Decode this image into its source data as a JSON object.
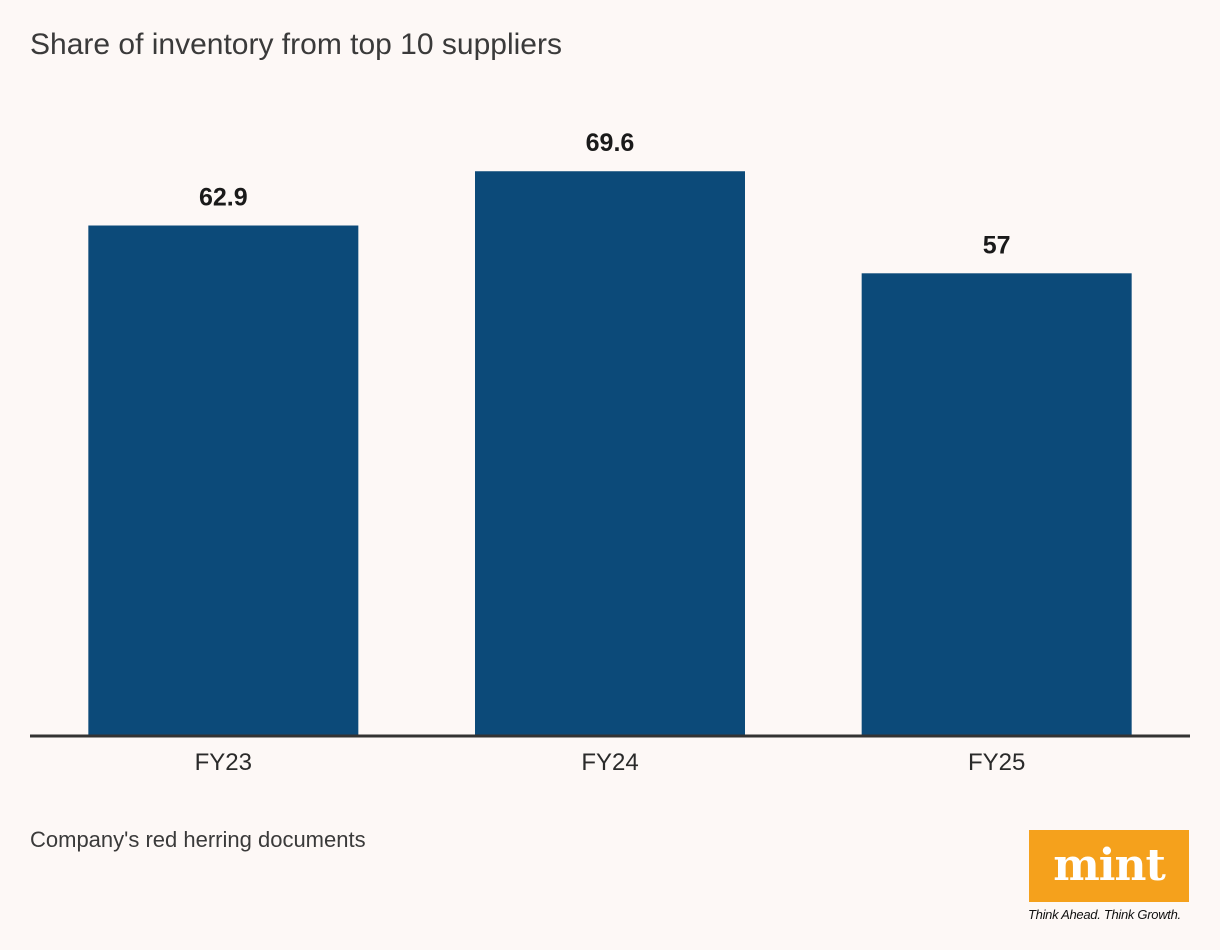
{
  "chart_data": {
    "type": "bar",
    "title": "Share of inventory from top 10 suppliers",
    "categories": [
      "FY23",
      "FY24",
      "FY25"
    ],
    "values": [
      62.9,
      69.6,
      57
    ],
    "value_labels": [
      "62.9",
      "69.6",
      "57"
    ],
    "xlabel": "",
    "ylabel": "",
    "ylim": [
      0,
      100
    ],
    "grid": false,
    "bar_color": "#0c4a79"
  },
  "source": "Company's red herring documents",
  "brand": {
    "logo_text": "mint",
    "tagline": "Think Ahead. Think Growth.",
    "logo_color": "#f5a11c"
  },
  "colors": {
    "background": "#fdf8f6",
    "axis": "#333333"
  }
}
